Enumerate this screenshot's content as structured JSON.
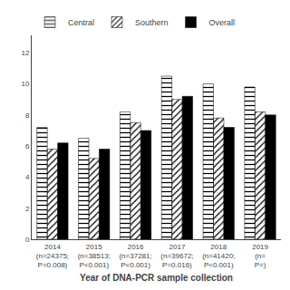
{
  "chart_data": {
    "type": "bar",
    "xlabel": "Year of DNA-PCR sample collection",
    "categories": [
      "2014\n(n=24375;\nP=0.008)",
      "2015\n(n=38513;\nP<0.001)",
      "2016\n(n=37281;\nP<0.001)",
      "2017\n(n=39672;\nP=0.016)",
      "2018\n(n=41420;\nP<0.001)",
      "2019\n(n=\nP=)"
    ],
    "series": [
      {
        "name": "Central",
        "color": "#a0a0a0",
        "values": [
          7.2,
          6.5,
          8.2,
          10.5,
          10.0,
          9.8
        ]
      },
      {
        "name": "Southern",
        "color": "#ffffff",
        "values": [
          5.8,
          5.2,
          7.5,
          9.0,
          7.8,
          8.2
        ]
      },
      {
        "name": "Overall",
        "color": "#000000",
        "values": [
          6.2,
          5.8,
          7.0,
          9.2,
          7.2,
          8.0
        ]
      }
    ],
    "ylim": [
      0,
      13.125
    ],
    "yticks": [
      0,
      2,
      4,
      6,
      8,
      10,
      12
    ],
    "grid": false,
    "legend": "upper left"
  }
}
